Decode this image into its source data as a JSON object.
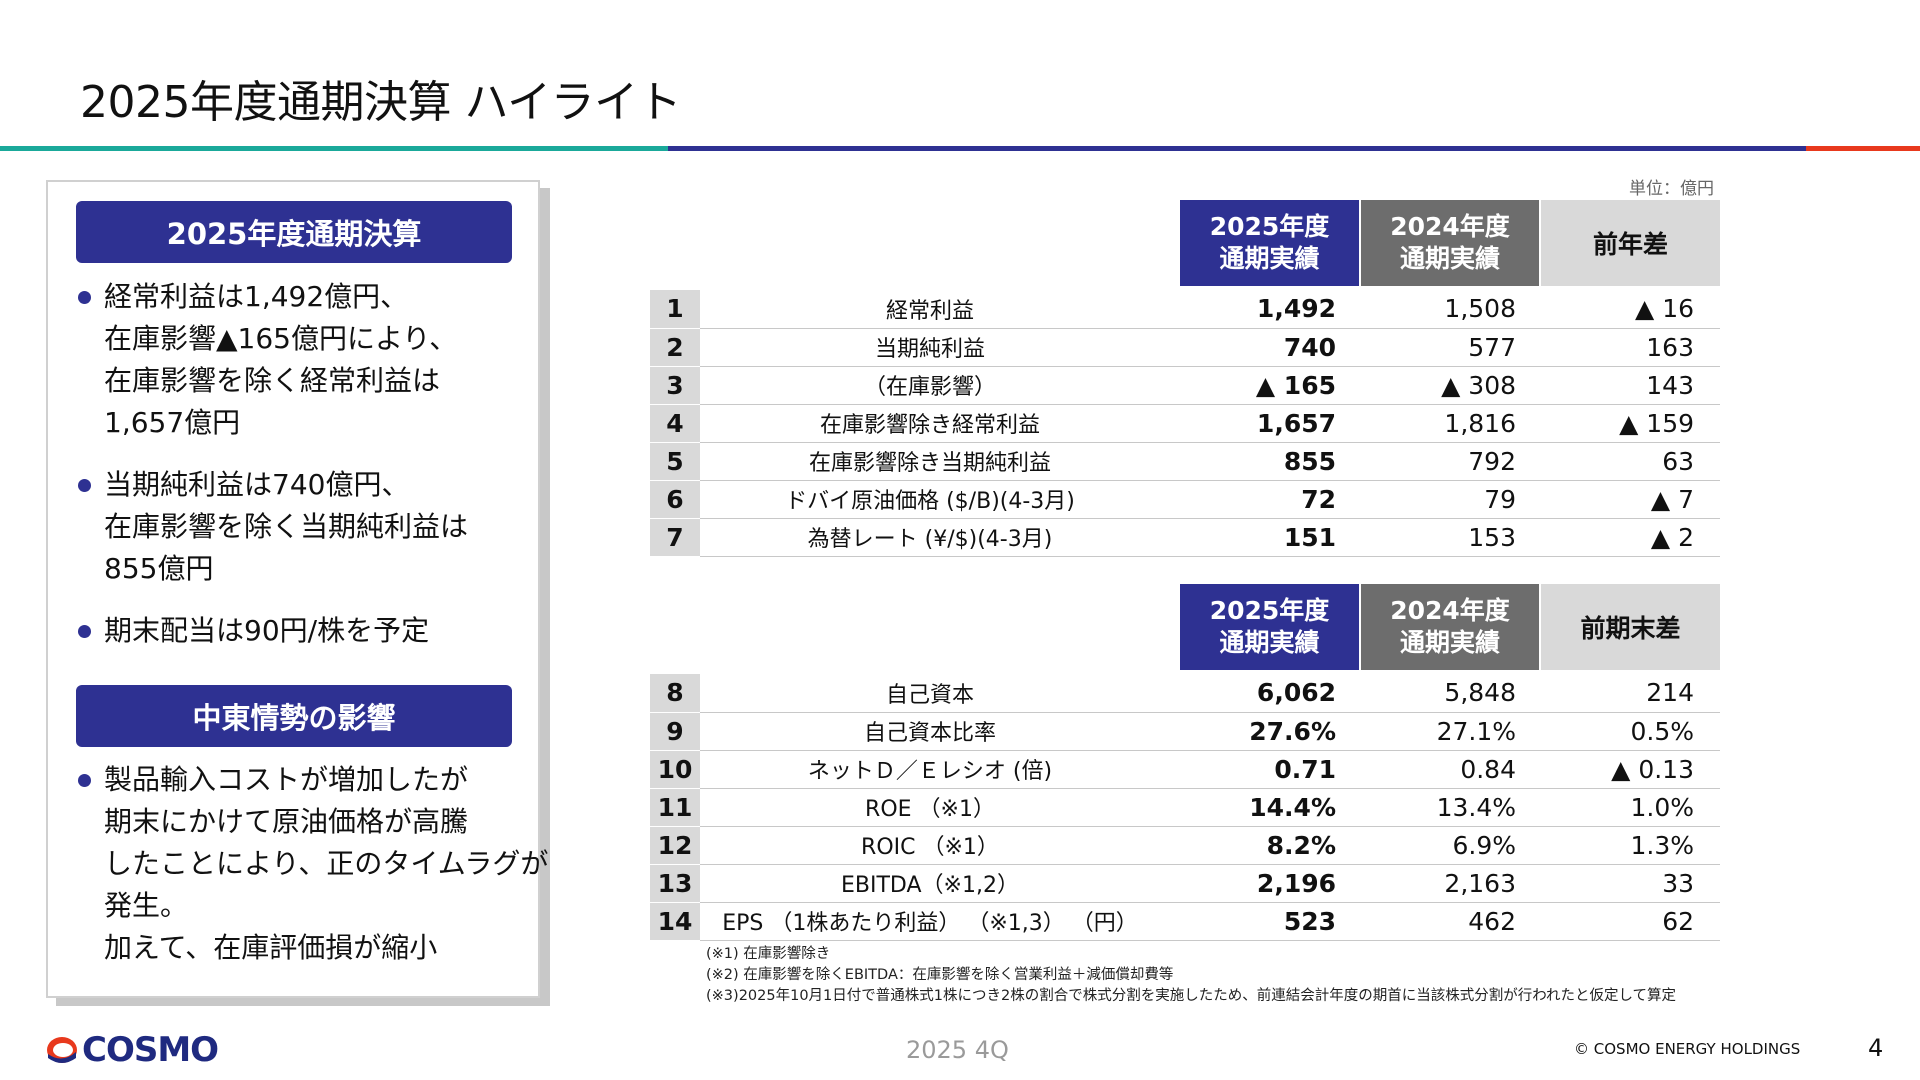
{
  "title": "2025年度通期決算 ハイライト",
  "colors": {
    "navy": "#2e3192",
    "teal": "#1aa99a",
    "red": "#e8391d",
    "gray_header": "#6d6d6d",
    "light_gray": "#d9d9d9"
  },
  "left_panel": {
    "section1_title": "2025年度通期決算",
    "section1_bullets": [
      {
        "lines": [
          "経常利益は1,492億円、",
          "在庫影響▲165億円により、",
          "在庫影響を除く経常利益は",
          "1,657億円"
        ]
      },
      {
        "lines": [
          "当期純利益は740億円、",
          "在庫影響を除く当期純利益は",
          "855億円"
        ]
      },
      {
        "lines": [
          "期末配当は90円/株を予定"
        ]
      }
    ],
    "section2_title": "中東情勢の影響",
    "section2_bullets": [
      {
        "lines": [
          "製品輸入コストが増加したが",
          "期末にかけて原油価格が高騰",
          "したことにより、正のタイムラグが",
          "発生。",
          "加えて、在庫評価損が縮小"
        ]
      }
    ]
  },
  "unit_label": "単位：億円",
  "table1": {
    "headers": {
      "cur": [
        "2025年度",
        "通期実績"
      ],
      "prev": [
        "2024年度",
        "通期実績"
      ],
      "diff": "前年差"
    },
    "rows": [
      {
        "no": "1",
        "label": "経常利益",
        "cur": "1,492",
        "prev": "1,508",
        "diff": "▲ 16"
      },
      {
        "no": "2",
        "label": "当期純利益",
        "cur": "740",
        "prev": "577",
        "diff": "163"
      },
      {
        "no": "3",
        "label": "（在庫影響）",
        "cur": "▲ 165",
        "prev": "▲ 308",
        "diff": "143"
      },
      {
        "no": "4",
        "label": "在庫影響除き経常利益",
        "cur": "1,657",
        "prev": "1,816",
        "diff": "▲ 159"
      },
      {
        "no": "5",
        "label": "在庫影響除き当期純利益",
        "cur": "855",
        "prev": "792",
        "diff": "63"
      },
      {
        "no": "6",
        "label": "ドバイ原油価格 ($/B)(4-3月)",
        "cur": "72",
        "prev": "79",
        "diff": "▲ 7"
      },
      {
        "no": "7",
        "label": "為替レート (¥/$)(4-3月)",
        "cur": "151",
        "prev": "153",
        "diff": "▲ 2"
      }
    ]
  },
  "table2": {
    "headers": {
      "cur": [
        "2025年度",
        "通期実績"
      ],
      "prev": [
        "2024年度",
        "通期実績"
      ],
      "diff": "前期末差"
    },
    "rows": [
      {
        "no": "8",
        "label": "自己資本",
        "cur": "6,062",
        "prev": "5,848",
        "diff": "214"
      },
      {
        "no": "9",
        "label": "自己資本比率",
        "cur": "27.6%",
        "prev": "27.1%",
        "diff": "0.5%"
      },
      {
        "no": "10",
        "label": "ネットＤ／Ｅレシオ (倍)",
        "cur": "0.71",
        "prev": "0.84",
        "diff": "▲ 0.13"
      },
      {
        "no": "11",
        "label": "ROE （※1）",
        "cur": "14.4%",
        "prev": "13.4%",
        "diff": "1.0%"
      },
      {
        "no": "12",
        "label": "ROIC （※1）",
        "cur": "8.2%",
        "prev": "6.9%",
        "diff": "1.3%"
      },
      {
        "no": "13",
        "label": "EBITDA（※1,2）",
        "cur": "2,196",
        "prev": "2,163",
        "diff": "33"
      },
      {
        "no": "14",
        "label": "EPS （1株あたり利益） （※1,3） （円）",
        "cur": "523",
        "prev": "462",
        "diff": "62"
      }
    ]
  },
  "notes": [
    "(※1) 在庫影響除き",
    "(※2) 在庫影響を除くEBITDA：在庫影響を除く営業利益＋減価償却費等",
    "(※3)2025年10月1日付で普通株式1株につき2株の割合で株式分割を実施したため、前連結会計年度の期首に当該株式分割が行われたと仮定して算定"
  ],
  "footer": {
    "logo_text": "COSMO",
    "period": "2025 4Q",
    "copyright": "© COSMO ENERGY HOLDINGS",
    "page": "4"
  }
}
